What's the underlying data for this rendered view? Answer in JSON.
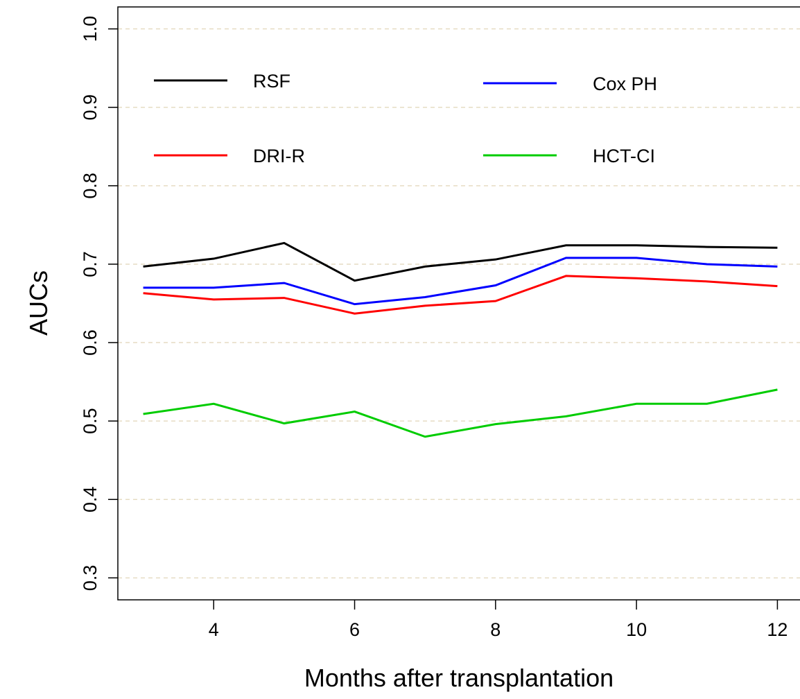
{
  "chart_data": {
    "type": "line",
    "x_label": "Months after transplantation",
    "y_label": "AUCs",
    "x": [
      3,
      4,
      5,
      6,
      7,
      8,
      9,
      10,
      11,
      12
    ],
    "series": [
      {
        "name": "RSF",
        "color": "#000000",
        "values": [
          0.697,
          0.707,
          0.727,
          0.679,
          0.697,
          0.706,
          0.724,
          0.724,
          0.722,
          0.721
        ]
      },
      {
        "name": "Cox PH",
        "color": "#0000ff",
        "values": [
          0.67,
          0.67,
          0.676,
          0.649,
          0.658,
          0.673,
          0.708,
          0.708,
          0.7,
          0.697
        ]
      },
      {
        "name": "DRI-R",
        "color": "#ff0000",
        "values": [
          0.663,
          0.655,
          0.657,
          0.637,
          0.647,
          0.653,
          0.685,
          0.682,
          0.678,
          0.672
        ]
      },
      {
        "name": "HCT-CI",
        "color": "#00cc00",
        "values": [
          0.509,
          0.522,
          0.497,
          0.512,
          0.48,
          0.496,
          0.506,
          0.522,
          0.522,
          0.54
        ]
      }
    ],
    "xlim": [
      2.64,
      12.36
    ],
    "xticks": [
      4,
      6,
      8,
      10,
      12
    ],
    "ylim": [
      0.272,
      1.028
    ],
    "yticks": [
      0.3,
      0.4,
      0.5,
      0.6,
      0.7,
      0.8,
      0.9,
      {
        "value": 1,
        "label": "1.0"
      }
    ],
    "grid": true
  }
}
